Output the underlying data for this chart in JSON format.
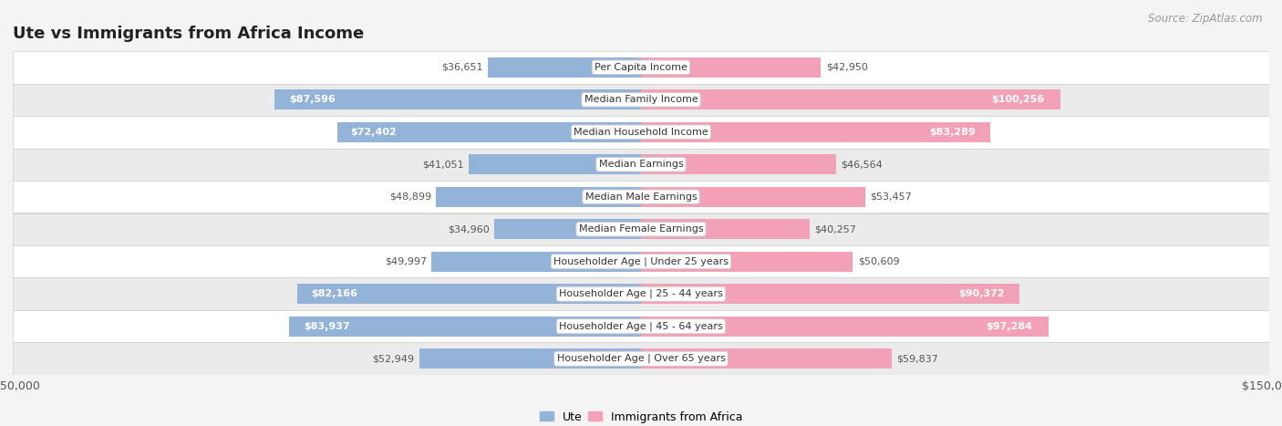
{
  "title": "Ute vs Immigrants from Africa Income",
  "source": "Source: ZipAtlas.com",
  "categories": [
    "Per Capita Income",
    "Median Family Income",
    "Median Household Income",
    "Median Earnings",
    "Median Male Earnings",
    "Median Female Earnings",
    "Householder Age | Under 25 years",
    "Householder Age | 25 - 44 years",
    "Householder Age | 45 - 64 years",
    "Householder Age | Over 65 years"
  ],
  "ute_values": [
    36651,
    87596,
    72402,
    41051,
    48899,
    34960,
    49997,
    82166,
    83937,
    52949
  ],
  "africa_values": [
    42950,
    100256,
    83289,
    46564,
    53457,
    40257,
    50609,
    90372,
    97284,
    59837
  ],
  "ute_labels": [
    "$36,651",
    "$87,596",
    "$72,402",
    "$41,051",
    "$48,899",
    "$34,960",
    "$49,997",
    "$82,166",
    "$83,937",
    "$52,949"
  ],
  "africa_labels": [
    "$42,950",
    "$100,256",
    "$83,289",
    "$46,564",
    "$53,457",
    "$40,257",
    "$50,609",
    "$90,372",
    "$97,284",
    "$59,837"
  ],
  "ute_color": "#94b3d8",
  "africa_color": "#f2a1b8",
  "africa_highlight_color": "#ee7fa3",
  "max_value": 150000,
  "bg_color": "#f4f4f4",
  "title_fontsize": 13,
  "source_fontsize": 8.5,
  "bar_label_fontsize": 8,
  "cat_label_fontsize": 8,
  "legend_labels": [
    "Ute",
    "Immigrants from Africa"
  ],
  "inside_label_threshold": 65000
}
